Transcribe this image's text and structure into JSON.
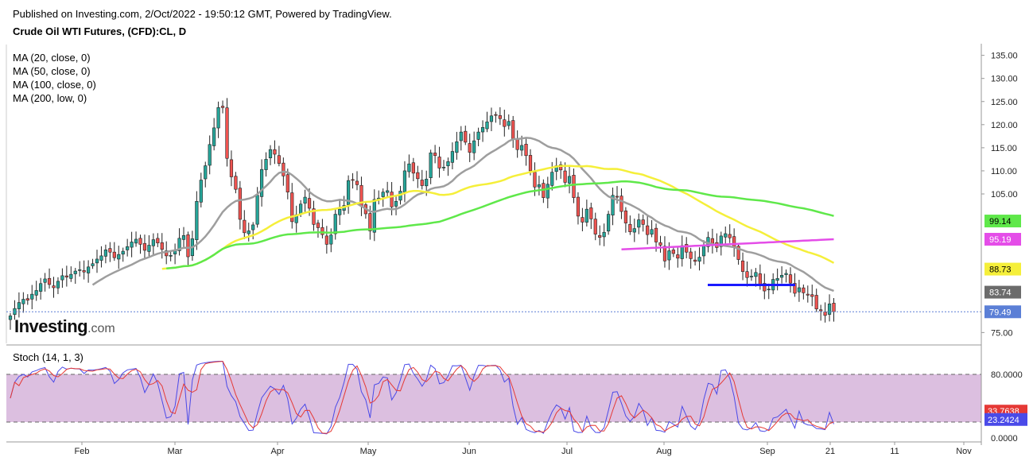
{
  "header": {
    "published": "Published on Investing.com, 2/Oct/2022 - 19:50:12 GMT, Powered by TradingView.",
    "symbol": "Crude Oil WTI Futures, (CFD):CL, D"
  },
  "ma_legend": [
    "MA (20, close, 0)",
    "MA (50, close, 0)",
    "MA (100, close, 0)",
    "MA (200, low, 0)"
  ],
  "logo": {
    "main": "Investing",
    "suffix": ".com"
  },
  "stoch_label": "Stoch (14, 1, 3)",
  "colors": {
    "up": "#26a69a",
    "down": "#ef5350",
    "ma20": "#9e9e9e",
    "ma50": "#f5ef3a",
    "ma100": "#5fe84a",
    "ma200": "#e44de8",
    "support": "#1a1aff",
    "stoch_k": "#4a4ae8",
    "stoch_d": "#e53935",
    "stoch_band": "#dcbfe0"
  },
  "chart_data": {
    "type": "candlestick",
    "price_axis": {
      "ticks": [
        "135.00",
        "130.00",
        "125.00",
        "120.00",
        "115.00",
        "110.00",
        "105.00",
        "75.00"
      ],
      "range": [
        73,
        137
      ]
    },
    "x_ticks": [
      "Feb",
      "Mar",
      "Apr",
      "May",
      "Jun",
      "Jul",
      "Aug",
      "Sep",
      "21",
      "11",
      "Nov"
    ],
    "last_price": "79.49",
    "ma_values": {
      "ma20": "83.74",
      "ma50": "88.73",
      "ma100": "99.14",
      "ma200": "95.19"
    },
    "support_level": 85.3,
    "closes": [
      78.6,
      80.2,
      81.5,
      82.2,
      82.0,
      83.3,
      84.1,
      85.6,
      86.6,
      85.4,
      84.7,
      86.1,
      87.3,
      87.0,
      87.6,
      88.3,
      88.6,
      88.1,
      89.2,
      89.9,
      90.9,
      91.6,
      92.9,
      92.4,
      91.2,
      91.9,
      92.6,
      93.6,
      94.6,
      95.2,
      94.1,
      92.8,
      93.9,
      95.1,
      94.4,
      93.0,
      91.6,
      91.7,
      92.8,
      95.4,
      96.0,
      91.4,
      95.3,
      103.4,
      108.0,
      111.1,
      115.7,
      119.3,
      123.7,
      123.7,
      112.7,
      108.7,
      106.0,
      99.5,
      96.6,
      97.0,
      98.3,
      104.7,
      110.3,
      112.5,
      114.6,
      113.6,
      111.6,
      108.9,
      105.4,
      99.0,
      100.5,
      102.8,
      104.3,
      101.9,
      98.4,
      97.7,
      96.2,
      94.1,
      96.1,
      100.6,
      101.7,
      102.5,
      107.9,
      108.0,
      107.0,
      102.4,
      100.7,
      97.0,
      103.8,
      104.1,
      105.4,
      105.7,
      102.2,
      103.4,
      105.6,
      110.0,
      111.5,
      109.5,
      108.3,
      106.8,
      108.2,
      113.9,
      113.3,
      110.6,
      110.8,
      112.0,
      114.2,
      116.3,
      118.4,
      116.2,
      114.0,
      116.5,
      118.4,
      119.4,
      120.6,
      121.9,
      122.1,
      121.3,
      119.6,
      120.7,
      117.0,
      114.6,
      115.5,
      113.3,
      110.0,
      106.5,
      107.0,
      104.2,
      107.1,
      109.7,
      111.1,
      110.2,
      107.5,
      108.8,
      104.2,
      100.2,
      98.9,
      101.7,
      99.6,
      96.3,
      95.6,
      96.7,
      100.6,
      104.7,
      104.3,
      101.2,
      98.7,
      96.8,
      97.5,
      99.4,
      98.4,
      96.2,
      97.3,
      94.6,
      93.9,
      90.5,
      92.7,
      92.1,
      91.1,
      93.8,
      92.4,
      91.0,
      90.4,
      91.3,
      93.7,
      95.6,
      94.3,
      93.4,
      95.9,
      96.4,
      95.5,
      93.6,
      90.8,
      88.2,
      86.9,
      87.2,
      88.0,
      85.5,
      84.0,
      84.4,
      86.5,
      86.7,
      87.4,
      87.8,
      85.7,
      83.5,
      84.7,
      83.6,
      83.1,
      82.8,
      80.1,
      79.7,
      78.7,
      81.2,
      79.5
    ]
  }
}
